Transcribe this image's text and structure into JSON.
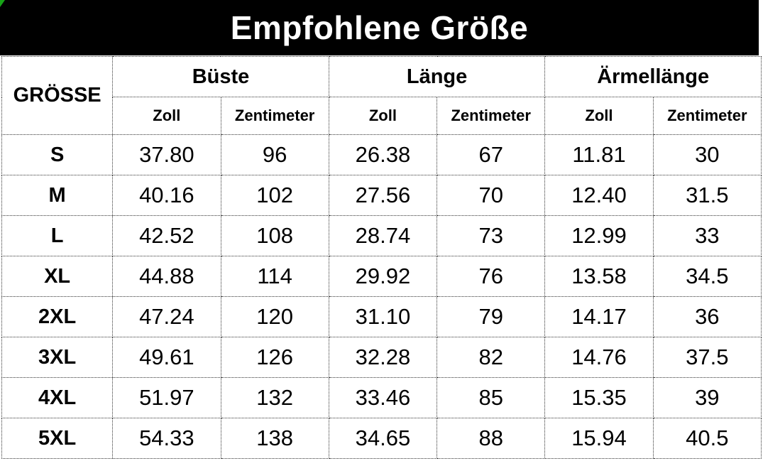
{
  "title": "Empfohlene Größe",
  "colors": {
    "banner_bg": "#000000",
    "banner_text": "#ffffff",
    "corner_marker_green": "#17a317",
    "border": "#333333"
  },
  "table": {
    "corner_header": "GRÖSSE",
    "groups": [
      {
        "label": "Büste"
      },
      {
        "label": "Länge"
      },
      {
        "label": "Ärmellänge"
      }
    ],
    "unit_headers": [
      "Zoll",
      "Zentimeter",
      "Zoll",
      "Zentimeter",
      "Zoll",
      "Zentimeter"
    ],
    "rows": [
      {
        "size": "S",
        "cells": [
          "37.80",
          "96",
          "26.38",
          "67",
          "11.81",
          "30"
        ]
      },
      {
        "size": "M",
        "cells": [
          "40.16",
          "102",
          "27.56",
          "70",
          "12.40",
          "31.5"
        ]
      },
      {
        "size": "L",
        "cells": [
          "42.52",
          "108",
          "28.74",
          "73",
          "12.99",
          "33"
        ]
      },
      {
        "size": "XL",
        "cells": [
          "44.88",
          "114",
          "29.92",
          "76",
          "13.58",
          "34.5"
        ]
      },
      {
        "size": "2XL",
        "cells": [
          "47.24",
          "120",
          "31.10",
          "79",
          "14.17",
          "36"
        ]
      },
      {
        "size": "3XL",
        "cells": [
          "49.61",
          "126",
          "32.28",
          "82",
          "14.76",
          "37.5"
        ]
      },
      {
        "size": "4XL",
        "cells": [
          "51.97",
          "132",
          "33.46",
          "85",
          "15.35",
          "39"
        ]
      },
      {
        "size": "5XL",
        "cells": [
          "54.33",
          "138",
          "34.65",
          "88",
          "15.94",
          "40.5"
        ]
      }
    ]
  }
}
